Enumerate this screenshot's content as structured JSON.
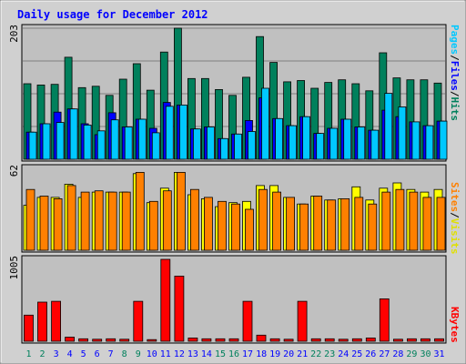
{
  "chart_data": [
    {
      "type": "bar",
      "title": "Daily usage for December 2012",
      "panel": "hits-files-pages",
      "ymax_label": "203",
      "ymax": 203,
      "categories": [
        "1",
        "2",
        "3",
        "4",
        "5",
        "6",
        "7",
        "8",
        "9",
        "10",
        "11",
        "12",
        "13",
        "14",
        "15",
        "16",
        "17",
        "18",
        "19",
        "20",
        "21",
        "22",
        "23",
        "24",
        "25",
        "26",
        "27",
        "28",
        "29",
        "30",
        "31"
      ],
      "series": [
        {
          "name": "Hits",
          "color": "#00805C",
          "values": [
            117,
            115,
            116,
            158,
            111,
            113,
            99,
            124,
            148,
            107,
            166,
            203,
            125,
            125,
            108,
            99,
            127,
            190,
            150,
            120,
            122,
            110,
            119,
            123,
            117,
            106,
            165,
            126,
            123,
            123,
            118
          ]
        },
        {
          "name": "Files",
          "color": "#0000FF",
          "values": [
            42,
            55,
            73,
            78,
            55,
            38,
            72,
            50,
            62,
            48,
            88,
            84,
            47,
            50,
            32,
            39,
            60,
            95,
            63,
            52,
            66,
            40,
            48,
            62,
            50,
            45,
            76,
            66,
            58,
            52,
            59
          ]
        },
        {
          "name": "Pages",
          "color": "#00C8FF",
          "values": [
            42,
            55,
            57,
            78,
            53,
            44,
            61,
            50,
            62,
            41,
            82,
            84,
            47,
            50,
            32,
            39,
            43,
            110,
            63,
            52,
            66,
            40,
            48,
            62,
            50,
            45,
            102,
            81,
            58,
            52,
            59
          ]
        }
      ],
      "labels": [
        "Pages",
        "/",
        "Files",
        "/",
        "Hits"
      ]
    },
    {
      "type": "bar",
      "panel": "visits-sites",
      "ymax_label": "62",
      "ymax": 62,
      "categories": [
        "1",
        "2",
        "3",
        "4",
        "5",
        "6",
        "7",
        "8",
        "9",
        "10",
        "11",
        "12",
        "13",
        "14",
        "15",
        "16",
        "17",
        "18",
        "19",
        "20",
        "21",
        "22",
        "23",
        "24",
        "25",
        "26",
        "27",
        "28",
        "29",
        "30",
        "31"
      ],
      "series": [
        {
          "name": "Visits",
          "color": "#FFFF00",
          "values": [
            34,
            40,
            40,
            50,
            40,
            44,
            44,
            44,
            58,
            36,
            47,
            59,
            42,
            39,
            33,
            36,
            37,
            49,
            49,
            40,
            35,
            41,
            38,
            39,
            48,
            38,
            47,
            51,
            46,
            44,
            46
          ]
        },
        {
          "name": "Sites",
          "color": "#FF8000",
          "values": [
            46,
            41,
            39,
            49,
            44,
            45,
            44,
            44,
            59,
            37,
            45,
            59,
            46,
            40,
            37,
            35,
            31,
            46,
            44,
            40,
            35,
            41,
            38,
            39,
            40,
            35,
            44,
            46,
            44,
            40,
            40
          ]
        }
      ],
      "labels": [
        "Sites",
        "/",
        "Visits"
      ]
    },
    {
      "type": "bar",
      "panel": "kbytes",
      "ymax_label": "1005",
      "ymax": 1005,
      "categories": [
        "1",
        "2",
        "3",
        "4",
        "5",
        "6",
        "7",
        "8",
        "9",
        "10",
        "11",
        "12",
        "13",
        "14",
        "15",
        "16",
        "17",
        "18",
        "19",
        "20",
        "21",
        "22",
        "23",
        "24",
        "25",
        "26",
        "27",
        "28",
        "29",
        "30",
        "31"
      ],
      "series": [
        {
          "name": "KBytes",
          "color": "#FF0000",
          "values": [
            320,
            480,
            490,
            50,
            30,
            25,
            30,
            25,
            490,
            20,
            1005,
            800,
            40,
            30,
            30,
            30,
            490,
            75,
            30,
            25,
            490,
            30,
            30,
            25,
            30,
            40,
            520,
            25,
            30,
            30,
            30
          ]
        }
      ],
      "labels": [
        "KBytes"
      ]
    }
  ],
  "x_labels": {
    "days": [
      "1",
      "2",
      "3",
      "4",
      "5",
      "6",
      "7",
      "8",
      "9",
      "10",
      "11",
      "12",
      "13",
      "14",
      "15",
      "16",
      "17",
      "18",
      "19",
      "20",
      "21",
      "22",
      "23",
      "24",
      "25",
      "26",
      "27",
      "28",
      "29",
      "30",
      "31"
    ],
    "weekend_days": [
      "1",
      "2",
      "8",
      "9",
      "15",
      "16",
      "22",
      "23",
      "29",
      "30"
    ],
    "weekday_color": "#0000FF",
    "weekend_color": "#00805C"
  },
  "colors": {
    "frame_bg": "#D0D0D0",
    "plot_bg": "#C0C0C0",
    "title": "#0000FF",
    "axis_text": "#000000"
  }
}
